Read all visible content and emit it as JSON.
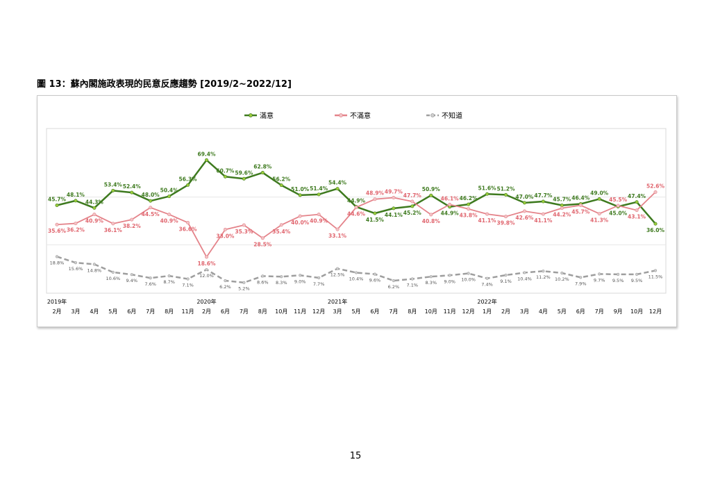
{
  "page": {
    "figure_title": "圖 13：蘇內閣施政表現的民意反應趨勢 [2019/2~2022/12]",
    "page_number": "15"
  },
  "chart_data": {
    "type": "line",
    "title": "",
    "xlabel": "",
    "ylabel": "",
    "ylim": [
      0,
      75
    ],
    "grid": true,
    "legend_position": "top",
    "categories": [
      "2月",
      "3月",
      "4月",
      "5月",
      "6月",
      "7月",
      "8月",
      "11月",
      "2月",
      "6月",
      "7月",
      "8月",
      "10月",
      "11月",
      "12月",
      "3月",
      "5月",
      "6月",
      "7月",
      "8月",
      "10月",
      "11月",
      "12月",
      "1月",
      "2月",
      "3月",
      "4月",
      "5月",
      "6月",
      "7月",
      "9月",
      "10月",
      "12月"
    ],
    "year_labels": [
      {
        "index": 0,
        "label": "2019年"
      },
      {
        "index": 8,
        "label": "2020年"
      },
      {
        "index": 15,
        "label": "2021年"
      },
      {
        "index": 23,
        "label": "2022年"
      }
    ],
    "series": [
      {
        "name": "滿意",
        "color": "#3e7a1f",
        "marker_color": "#9ccc3c",
        "dash": "solid",
        "values": [
          45.7,
          48.1,
          44.3,
          53.4,
          52.4,
          48.0,
          50.4,
          56.3,
          69.4,
          60.7,
          59.6,
          62.8,
          56.2,
          51.0,
          51.4,
          54.4,
          44.9,
          41.5,
          44.1,
          45.2,
          50.9,
          44.9,
          46.2,
          51.6,
          51.2,
          47.0,
          47.7,
          45.7,
          46.4,
          49.0,
          45.0,
          47.4,
          36.0
        ]
      },
      {
        "name": "不滿意",
        "color": "#e4838a",
        "marker_color": "#f2c2c5",
        "dash": "solid",
        "values": [
          35.6,
          36.2,
          40.9,
          36.1,
          38.2,
          44.5,
          40.9,
          36.6,
          18.6,
          33.0,
          35.3,
          28.5,
          35.4,
          40.0,
          40.9,
          33.1,
          44.6,
          48.9,
          49.7,
          47.7,
          40.8,
          46.1,
          43.8,
          41.1,
          39.8,
          42.6,
          41.1,
          44.2,
          45.7,
          41.3,
          45.5,
          43.1,
          52.6
        ]
      },
      {
        "name": "不知道",
        "color": "#9e9e9e",
        "marker_color": "#cfcfcf",
        "dash": "dashed",
        "values": [
          18.8,
          15.6,
          14.8,
          10.6,
          9.4,
          7.6,
          8.7,
          7.1,
          12.0,
          6.2,
          5.2,
          8.6,
          8.3,
          9.0,
          7.7,
          12.5,
          10.4,
          9.6,
          6.2,
          7.1,
          8.3,
          9.0,
          10.0,
          7.4,
          9.1,
          10.4,
          11.2,
          10.2,
          7.9,
          9.7,
          9.5,
          9.5,
          11.5
        ]
      }
    ]
  }
}
